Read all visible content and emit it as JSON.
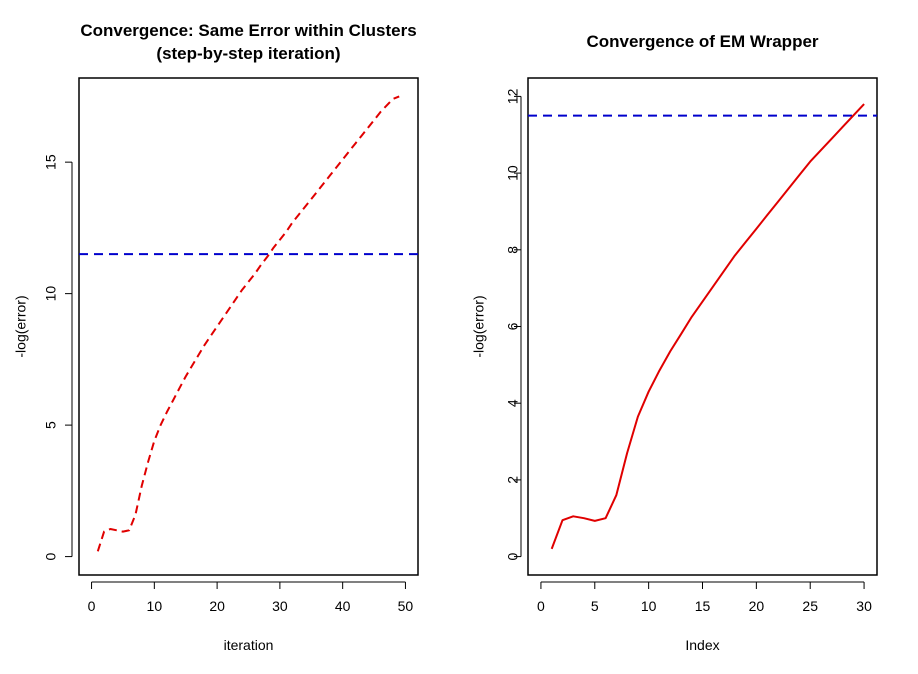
{
  "chart_data": [
    {
      "type": "line",
      "title_lines": [
        "Convergence: Same Error within Clusters",
        "(step-by-step iteration)"
      ],
      "xlabel": "iteration",
      "ylabel": "-log(error)",
      "xlim": [
        0,
        50
      ],
      "ylim": [
        0,
        17.5
      ],
      "xticks": [
        0,
        10,
        20,
        30,
        40,
        50
      ],
      "yticks": [
        0,
        5,
        10,
        15
      ],
      "x": [
        1,
        2,
        3,
        4,
        5,
        6,
        7,
        8,
        9,
        10,
        11,
        12,
        13,
        14,
        15,
        16,
        17,
        18,
        19,
        20,
        21,
        22,
        23,
        24,
        25,
        26,
        27,
        28,
        29,
        30,
        31,
        32,
        33,
        34,
        35,
        36,
        37,
        38,
        39,
        40,
        41,
        42,
        43,
        44,
        45,
        46,
        47,
        48,
        49
      ],
      "series": [
        {
          "values": [
            0.2,
            0.95,
            1.05,
            1.0,
            0.95,
            1.0,
            1.6,
            2.7,
            3.6,
            4.4,
            5.0,
            5.5,
            5.95,
            6.4,
            6.85,
            7.25,
            7.65,
            8.05,
            8.4,
            8.75,
            9.1,
            9.45,
            9.8,
            10.15,
            10.45,
            10.75,
            11.1,
            11.4,
            11.75,
            12.05,
            12.35,
            12.7,
            13.0,
            13.3,
            13.6,
            13.9,
            14.2,
            14.5,
            14.8,
            15.1,
            15.4,
            15.7,
            16.0,
            16.3,
            16.6,
            16.9,
            17.15,
            17.4,
            17.5
          ],
          "color": "#e00000",
          "style": "dashed"
        }
      ],
      "hline": {
        "value": 11.5,
        "color": "#0000cc",
        "style": "dashed"
      }
    },
    {
      "type": "line",
      "title_lines": [
        "Convergence of EM Wrapper"
      ],
      "xlabel": "Index",
      "ylabel": "-log(error)",
      "xlim": [
        0,
        30
      ],
      "ylim": [
        0,
        12
      ],
      "xticks": [
        0,
        5,
        10,
        15,
        20,
        25,
        30
      ],
      "yticks": [
        0,
        2,
        4,
        6,
        8,
        10,
        12
      ],
      "x": [
        1,
        2,
        3,
        4,
        5,
        6,
        7,
        8,
        9,
        10,
        11,
        12,
        13,
        14,
        15,
        16,
        17,
        18,
        19,
        20,
        21,
        22,
        23,
        24,
        25,
        26,
        27,
        28,
        29,
        30
      ],
      "series": [
        {
          "values": [
            0.2,
            0.95,
            1.05,
            1.0,
            0.93,
            1.0,
            1.6,
            2.7,
            3.65,
            4.3,
            4.85,
            5.35,
            5.8,
            6.25,
            6.65,
            7.05,
            7.45,
            7.85,
            8.2,
            8.55,
            8.9,
            9.25,
            9.6,
            9.95,
            10.3,
            10.6,
            10.9,
            11.2,
            11.5,
            11.8
          ],
          "color": "#e00000",
          "style": "solid"
        }
      ],
      "hline": {
        "value": 11.5,
        "color": "#0000cc",
        "style": "dashed"
      }
    }
  ]
}
